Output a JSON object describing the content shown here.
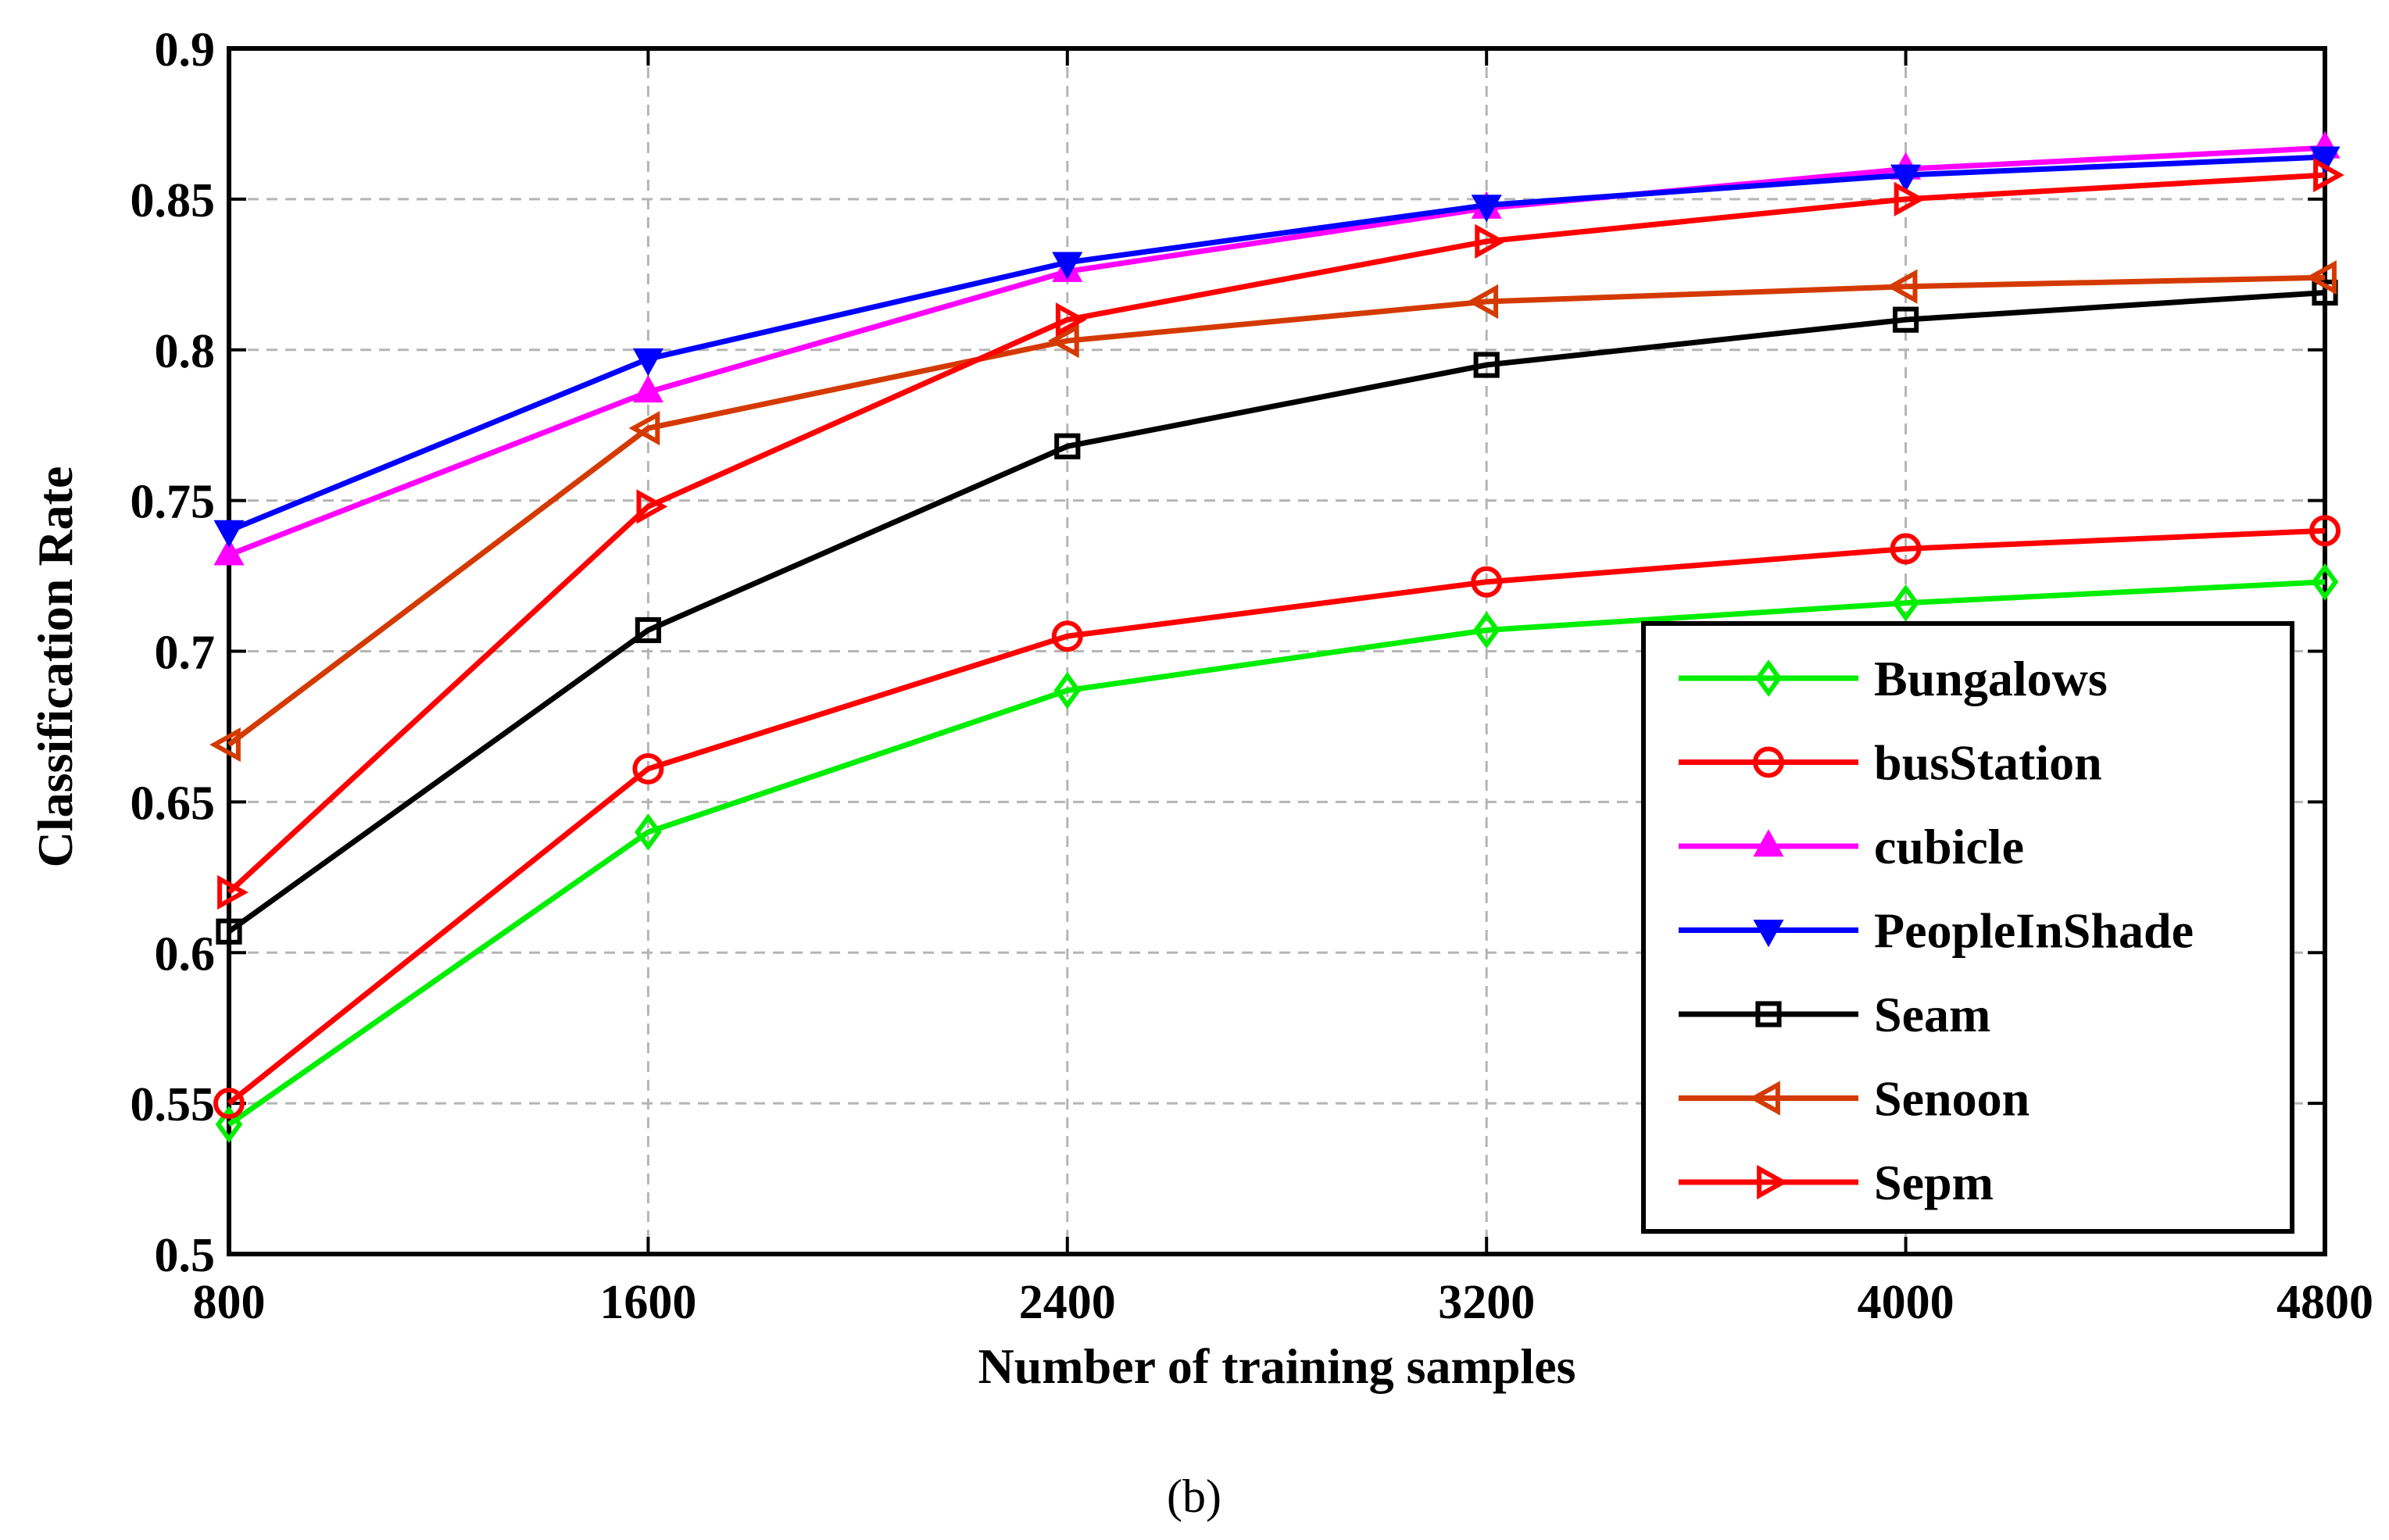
{
  "chart_data": {
    "type": "line",
    "title": "",
    "xlabel": "Number of training samples",
    "ylabel": "Classification Rate",
    "x": [
      800,
      1600,
      2400,
      3200,
      4000,
      4800
    ],
    "xlim": [
      800,
      4800
    ],
    "ylim": [
      0.5,
      0.9
    ],
    "xticks": [
      "800",
      "1600",
      "2400",
      "3200",
      "4000",
      "4800"
    ],
    "yticks": [
      "0.5",
      "0.55",
      "0.6",
      "0.65",
      "0.7",
      "0.75",
      "0.8",
      "0.85",
      "0.9"
    ],
    "grid": true,
    "legend_position": "bottom-right",
    "series": [
      {
        "name": "Bungalows",
        "color": "#00ee00",
        "marker": "diamond",
        "values": [
          0.543,
          0.64,
          0.687,
          0.707,
          0.716,
          0.723
        ]
      },
      {
        "name": "busStation",
        "color": "#ff0000",
        "marker": "circle",
        "values": [
          0.55,
          0.661,
          0.705,
          0.723,
          0.734,
          0.74
        ]
      },
      {
        "name": "cubicle",
        "color": "#ff00ff",
        "marker": "triangle-up",
        "values": [
          0.732,
          0.786,
          0.826,
          0.847,
          0.86,
          0.867
        ]
      },
      {
        "name": "PeopleInShade",
        "color": "#0000ff",
        "marker": "triangle-down",
        "values": [
          0.74,
          0.797,
          0.829,
          0.848,
          0.858,
          0.864
        ]
      },
      {
        "name": "Seam",
        "color": "#000000",
        "marker": "square",
        "values": [
          0.607,
          0.707,
          0.768,
          0.795,
          0.81,
          0.819
        ]
      },
      {
        "name": "Senoon",
        "color": "#d43a00",
        "marker": "triangle-left",
        "values": [
          0.669,
          0.774,
          0.803,
          0.816,
          0.821,
          0.824
        ]
      },
      {
        "name": "Sepm",
        "color": "#ff0000",
        "marker": "triangle-right",
        "values": [
          0.62,
          0.748,
          0.81,
          0.836,
          0.85,
          0.858
        ]
      }
    ]
  },
  "caption": "(b)"
}
